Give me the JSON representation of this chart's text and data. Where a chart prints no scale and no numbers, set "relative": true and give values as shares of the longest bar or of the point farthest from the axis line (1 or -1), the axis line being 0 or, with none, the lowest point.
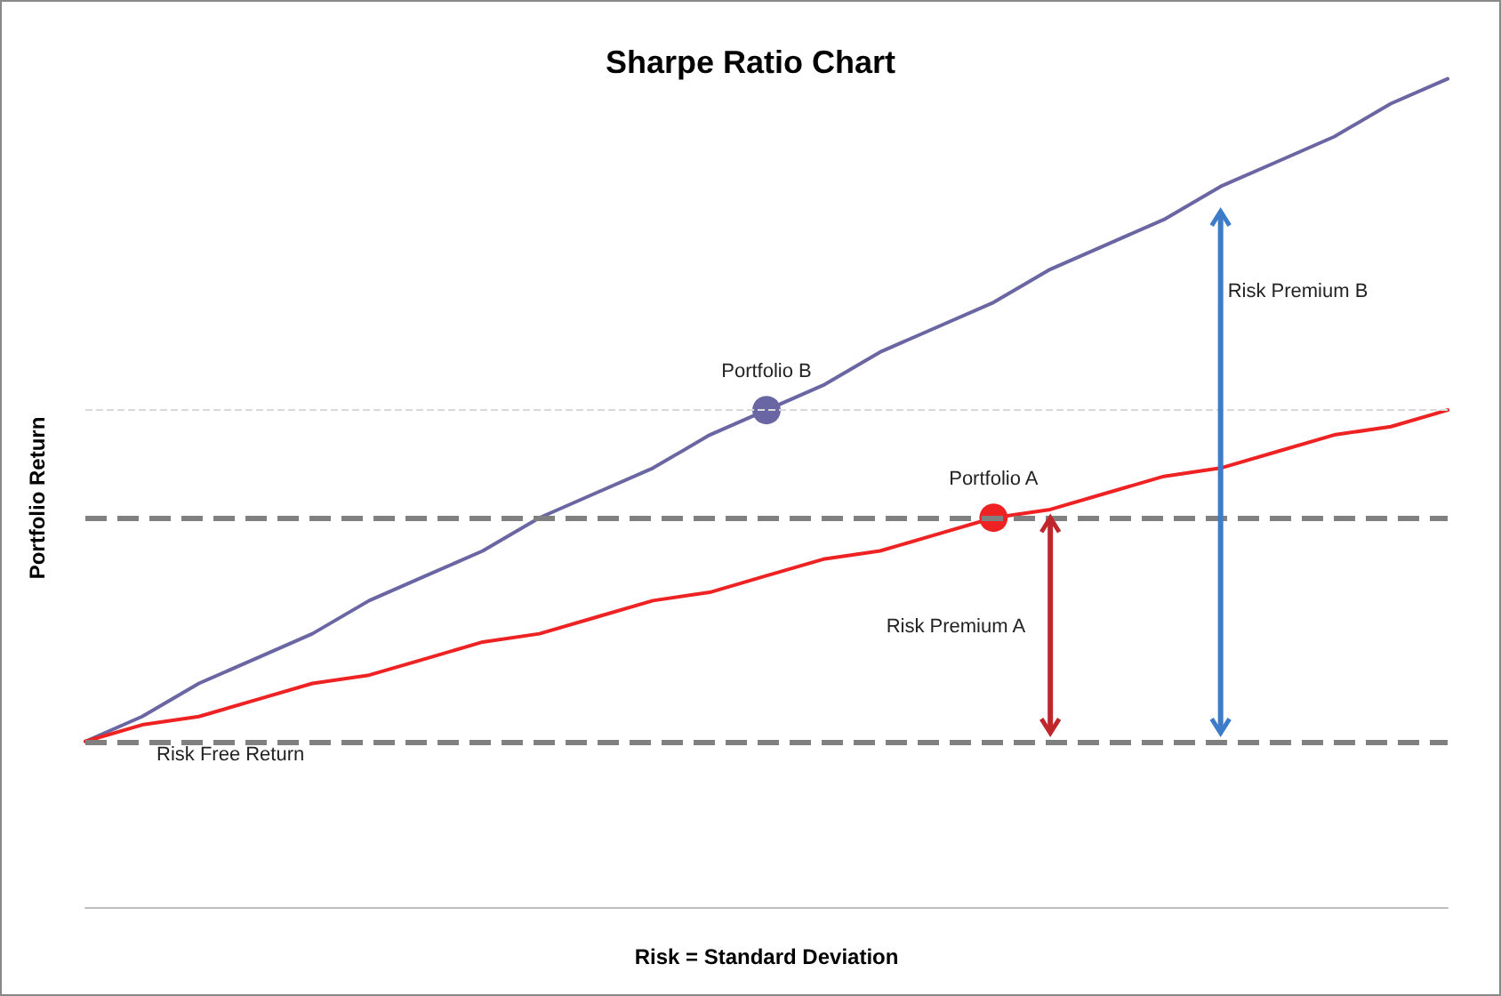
{
  "chart_data": {
    "type": "line",
    "title": "Sharpe Ratio Chart",
    "xlabel": "Risk = Standard Deviation",
    "ylabel": "Portfolio Return",
    "relative": true,
    "grid": false,
    "marker": "none",
    "line_style": "solid",
    "categories": [
      null,
      null,
      null,
      null,
      null,
      null,
      null,
      null,
      null,
      null,
      null,
      null,
      null,
      null,
      null,
      null,
      null,
      null,
      null,
      null,
      null,
      null,
      null,
      null,
      null
    ],
    "series": [
      {
        "color": "#6a66a3",
        "values": [
          0.2,
          0.23,
          0.27,
          0.3,
          0.33,
          0.37,
          0.4,
          0.43,
          0.47,
          0.5,
          0.53,
          0.57,
          0.6,
          0.63,
          0.67,
          0.7,
          0.73,
          0.77,
          0.8,
          0.83,
          0.87,
          0.9,
          0.93,
          0.97,
          1.0
        ]
      },
      {
        "color": "#ee2222",
        "values": [
          0.2,
          0.22,
          0.23,
          0.25,
          0.27,
          0.28,
          0.3,
          0.32,
          0.33,
          0.35,
          0.37,
          0.38,
          0.4,
          0.42,
          0.43,
          0.45,
          0.47,
          0.48,
          0.5,
          0.52,
          0.53,
          0.55,
          0.57,
          0.58,
          0.6
        ]
      }
    ],
    "ref_lines": [
      {
        "axis": "y",
        "value": 0.2,
        "label": "Risk Free Return",
        "color": "#808080",
        "line_style": "dashed"
      },
      {
        "axis": "y",
        "value": 0.47,
        "color": "#808080",
        "line_style": "dashed"
      },
      {
        "axis": "y",
        "value": 0.6,
        "color": "#d9d9d9",
        "line_style": "dashed"
      }
    ],
    "annotations": [
      {
        "text": "Portfolio B",
        "y": 0.6
      },
      {
        "text": "Portfolio A",
        "y": 0.47
      },
      "Risk Premium A",
      "Risk Premium B"
    ]
  }
}
